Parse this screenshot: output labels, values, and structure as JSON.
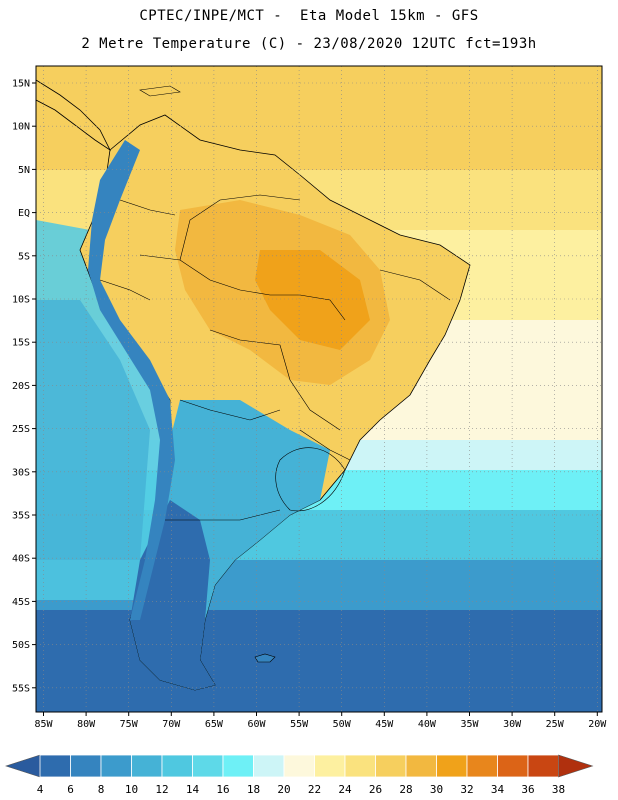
{
  "header": {
    "line1": "CPTEC/INPE/MCT -  Eta Model 15km - GFS",
    "line2": "2 Metre Temperature (C) - 23/08/2020 12UTC fct=193h"
  },
  "axes": {
    "longitude_labels": [
      "85W",
      "80W",
      "75W",
      "70W",
      "65W",
      "60W",
      "55W",
      "50W",
      "45W",
      "40W",
      "35W",
      "30W",
      "25W",
      "20W"
    ],
    "latitude_labels": [
      "15N",
      "10N",
      "5N",
      "EQ",
      "5S",
      "10S",
      "15S",
      "20S",
      "25S",
      "30S",
      "35S",
      "40S",
      "45S",
      "50S",
      "55S"
    ]
  },
  "colorbar": {
    "labels": [
      "4",
      "6",
      "8",
      "10",
      "12",
      "14",
      "16",
      "18",
      "20",
      "22",
      "24",
      "26",
      "28",
      "30",
      "32",
      "34",
      "36",
      "38"
    ],
    "colors": [
      "#2a5b9e",
      "#2e6cae",
      "#3584bf",
      "#3c9bcc",
      "#45b2d6",
      "#4fc8e0",
      "#5ed9e8",
      "#6ef0f6",
      "#cdf5f7",
      "#fdf8dc",
      "#fdf0a0",
      "#fae27e",
      "#f6cf5e",
      "#f2b840",
      "#f0a21a",
      "#e8861c",
      "#dc6417",
      "#c94612",
      "#b0300e"
    ]
  },
  "map": {
    "ocean_colors": {
      "warm": "#fdf0a0",
      "warmer": "#fae27e",
      "tropical": "#f6cf5e",
      "mild": "#cdf5f7",
      "cool": "#5ed9e8",
      "cold": "#3c9bcc",
      "colder": "#2e6cae"
    },
    "land_colors": {
      "hot": "#f0a21a",
      "warm": "#f2b840",
      "mid": "#f6cf5e",
      "andes": "#3584bf",
      "andes_high": "#4fc8e0",
      "south": "#45b2d6"
    }
  }
}
